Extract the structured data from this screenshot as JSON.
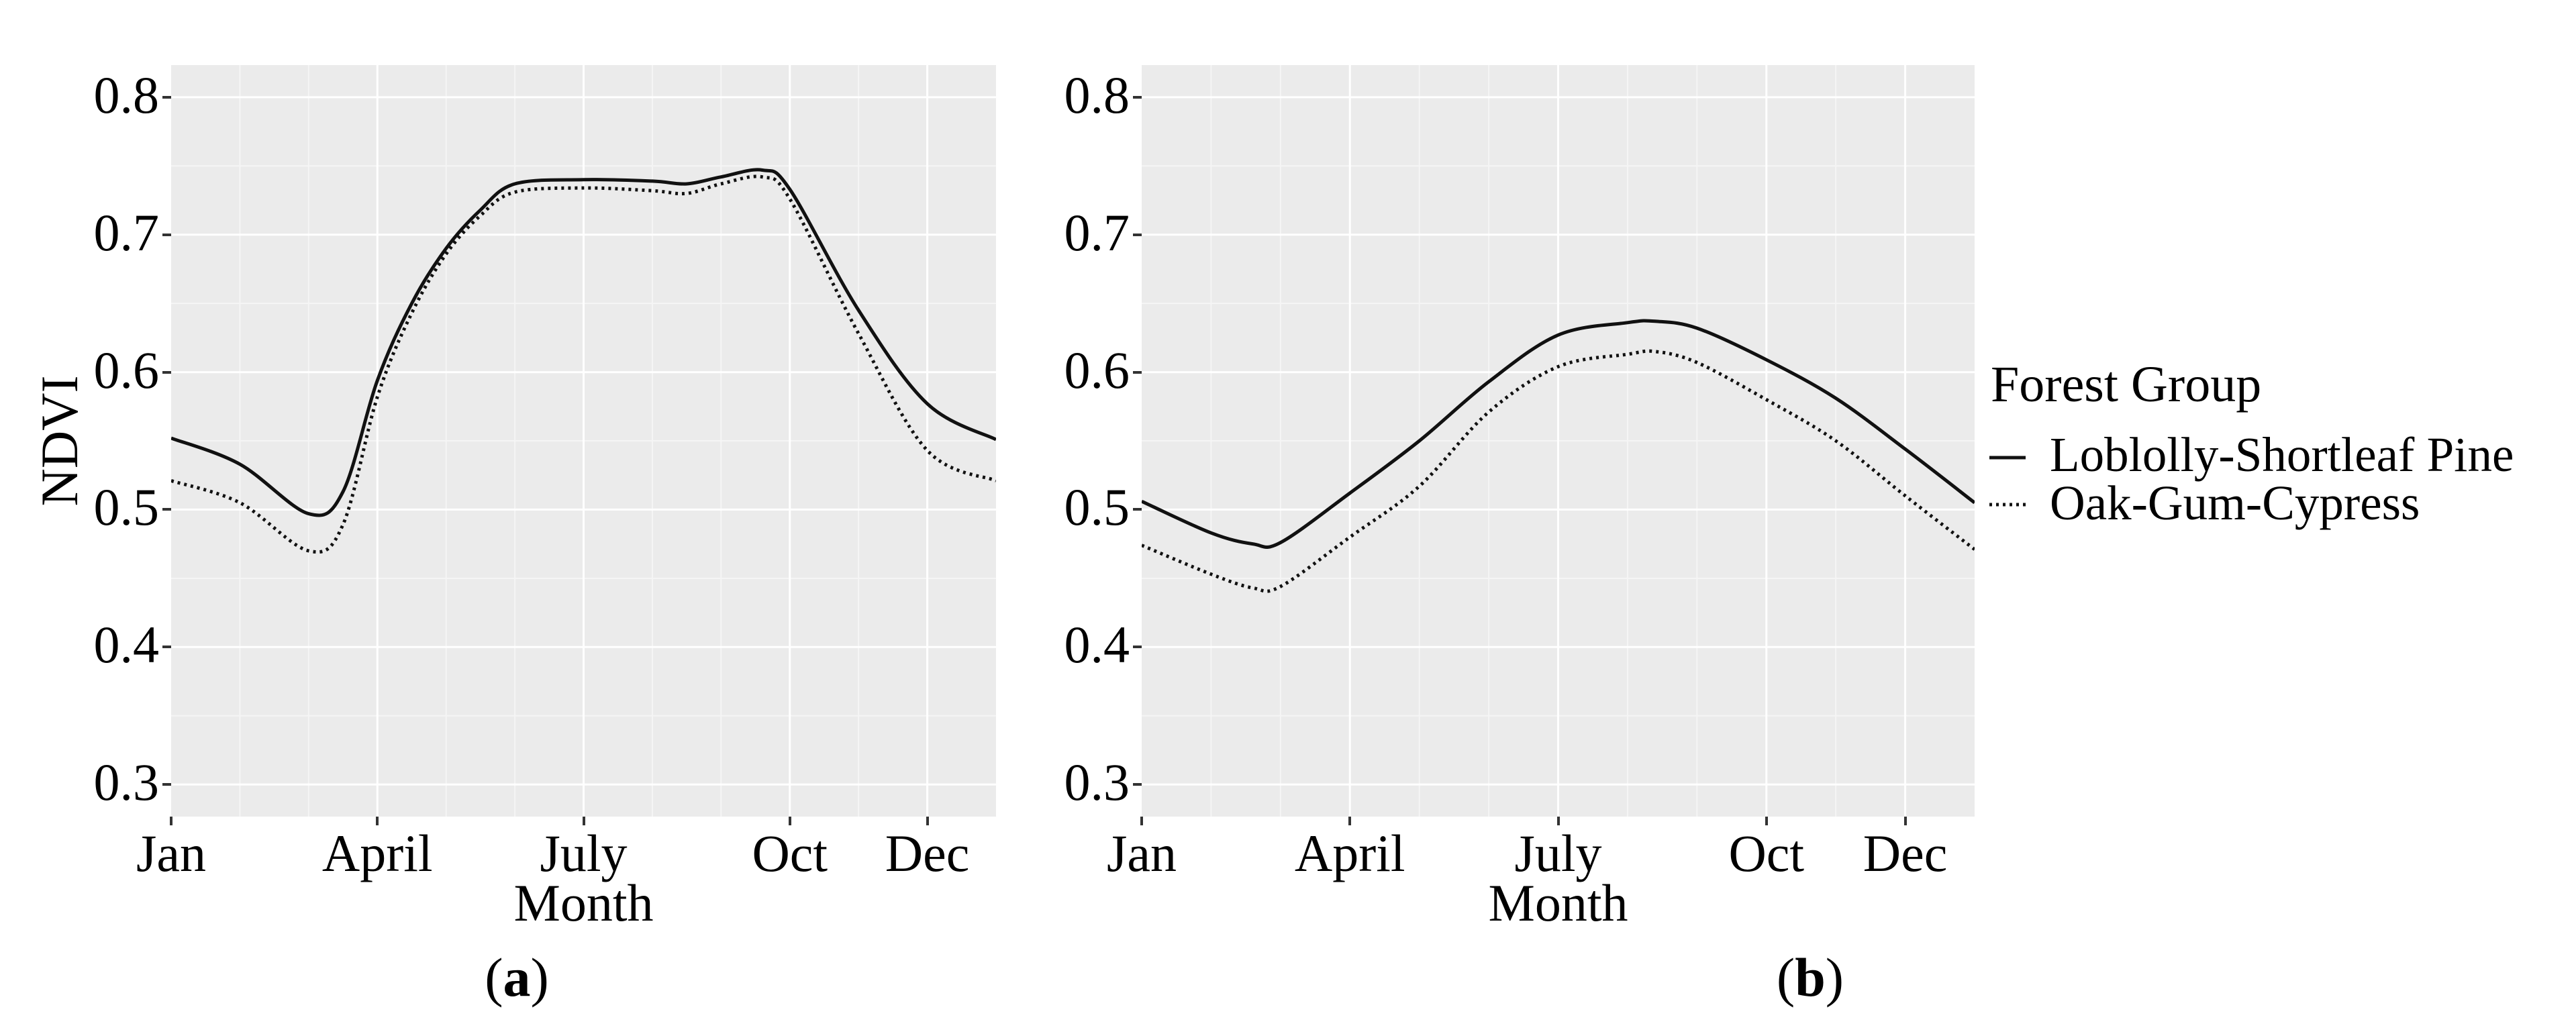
{
  "figure": {
    "y_axis_label": "NDVI",
    "captions": {
      "a": {
        "open": "(",
        "letter": "a",
        "close": ")"
      },
      "b": {
        "open": "(",
        "letter": "b",
        "close": ")"
      }
    },
    "legend": {
      "title": "Forest Group",
      "items": [
        {
          "label": "Loblolly-Shortleaf Pine",
          "linetype": "solid"
        },
        {
          "label": "Oak-Gum-Cypress",
          "linetype": "dotted"
        }
      ]
    },
    "colors": {
      "panel_background": "#EBEBEB",
      "grid_major": "#FFFFFF",
      "grid_minor": "#F5F5F5",
      "line": "#111111",
      "text": "#000000",
      "tick": "#333333"
    }
  },
  "chart_data": [
    {
      "id": "a",
      "type": "line",
      "xlabel": "Month",
      "ylabel": "NDVI",
      "xlim": [
        0,
        12
      ],
      "ylim": [
        0.2766,
        0.8234
      ],
      "x_ticks": [
        {
          "month": 0,
          "label": "Jan"
        },
        {
          "month": 3,
          "label": "April"
        },
        {
          "month": 6,
          "label": "July"
        },
        {
          "month": 9,
          "label": "Oct"
        },
        {
          "month": 11,
          "label": "Dec"
        }
      ],
      "x_minor_months": [
        1,
        2,
        4,
        5,
        7,
        8,
        10
      ],
      "y_ticks": [
        {
          "value": 0.8,
          "label": "0.8"
        },
        {
          "value": 0.7,
          "label": "0.7"
        },
        {
          "value": 0.6,
          "label": "0.6"
        },
        {
          "value": 0.5,
          "label": "0.5"
        },
        {
          "value": 0.4,
          "label": "0.4"
        },
        {
          "value": 0.3,
          "label": "0.3"
        }
      ],
      "y_minor": [
        0.75,
        0.65,
        0.55,
        0.45,
        0.35
      ],
      "series": [
        {
          "name": "Loblolly-Shortleaf Pine",
          "dash": "solid",
          "x": [
            0,
            1,
            2,
            2.5,
            3,
            3.5,
            4,
            4.5,
            5,
            6,
            7,
            7.5,
            8,
            8.6,
            9,
            10,
            11,
            12
          ],
          "y": [
            0.552,
            0.533,
            0.497,
            0.513,
            0.594,
            0.65,
            0.69,
            0.718,
            0.737,
            0.74,
            0.739,
            0.737,
            0.742,
            0.747,
            0.733,
            0.645,
            0.577,
            0.551
          ]
        },
        {
          "name": "Oak-Gum-Cypress",
          "dash": "dotted",
          "x": [
            0,
            1,
            2,
            2.5,
            3,
            3.5,
            4,
            4.5,
            5,
            6,
            7,
            7.5,
            8,
            8.6,
            9,
            10,
            11,
            12
          ],
          "y": [
            0.521,
            0.505,
            0.47,
            0.489,
            0.582,
            0.643,
            0.686,
            0.714,
            0.731,
            0.734,
            0.732,
            0.73,
            0.737,
            0.742,
            0.726,
            0.628,
            0.543,
            0.521
          ]
        }
      ]
    },
    {
      "id": "b",
      "type": "line",
      "xlabel": "Month",
      "ylabel": "NDVI",
      "xlim": [
        0,
        12
      ],
      "ylim": [
        0.2766,
        0.8234
      ],
      "x_ticks": [
        {
          "month": 0,
          "label": "Jan"
        },
        {
          "month": 3,
          "label": "April"
        },
        {
          "month": 6,
          "label": "July"
        },
        {
          "month": 9,
          "label": "Oct"
        },
        {
          "month": 11,
          "label": "Dec"
        }
      ],
      "x_minor_months": [
        1,
        2,
        4,
        5,
        7,
        8,
        10
      ],
      "y_ticks": [
        {
          "value": 0.8,
          "label": "0.8"
        },
        {
          "value": 0.7,
          "label": "0.7"
        },
        {
          "value": 0.6,
          "label": "0.6"
        },
        {
          "value": 0.5,
          "label": "0.5"
        },
        {
          "value": 0.4,
          "label": "0.4"
        },
        {
          "value": 0.3,
          "label": "0.3"
        }
      ],
      "y_minor": [
        0.75,
        0.65,
        0.55,
        0.45,
        0.35
      ],
      "series": [
        {
          "name": "Loblolly-Shortleaf Pine",
          "dash": "solid",
          "x": [
            0,
            1,
            1.6,
            2,
            3,
            4,
            5,
            6,
            7,
            7.4,
            8,
            9,
            10,
            11,
            12
          ],
          "y": [
            0.506,
            0.483,
            0.475,
            0.476,
            0.512,
            0.55,
            0.593,
            0.627,
            0.636,
            0.637,
            0.632,
            0.609,
            0.581,
            0.544,
            0.505
          ]
        },
        {
          "name": "Oak-Gum-Cypress",
          "dash": "dotted",
          "x": [
            0,
            1,
            1.6,
            2,
            3,
            4,
            5,
            6,
            7,
            7.4,
            8,
            9,
            10,
            11,
            12
          ],
          "y": [
            0.474,
            0.453,
            0.443,
            0.444,
            0.48,
            0.517,
            0.571,
            0.604,
            0.613,
            0.615,
            0.607,
            0.58,
            0.55,
            0.51,
            0.471
          ]
        }
      ]
    }
  ]
}
